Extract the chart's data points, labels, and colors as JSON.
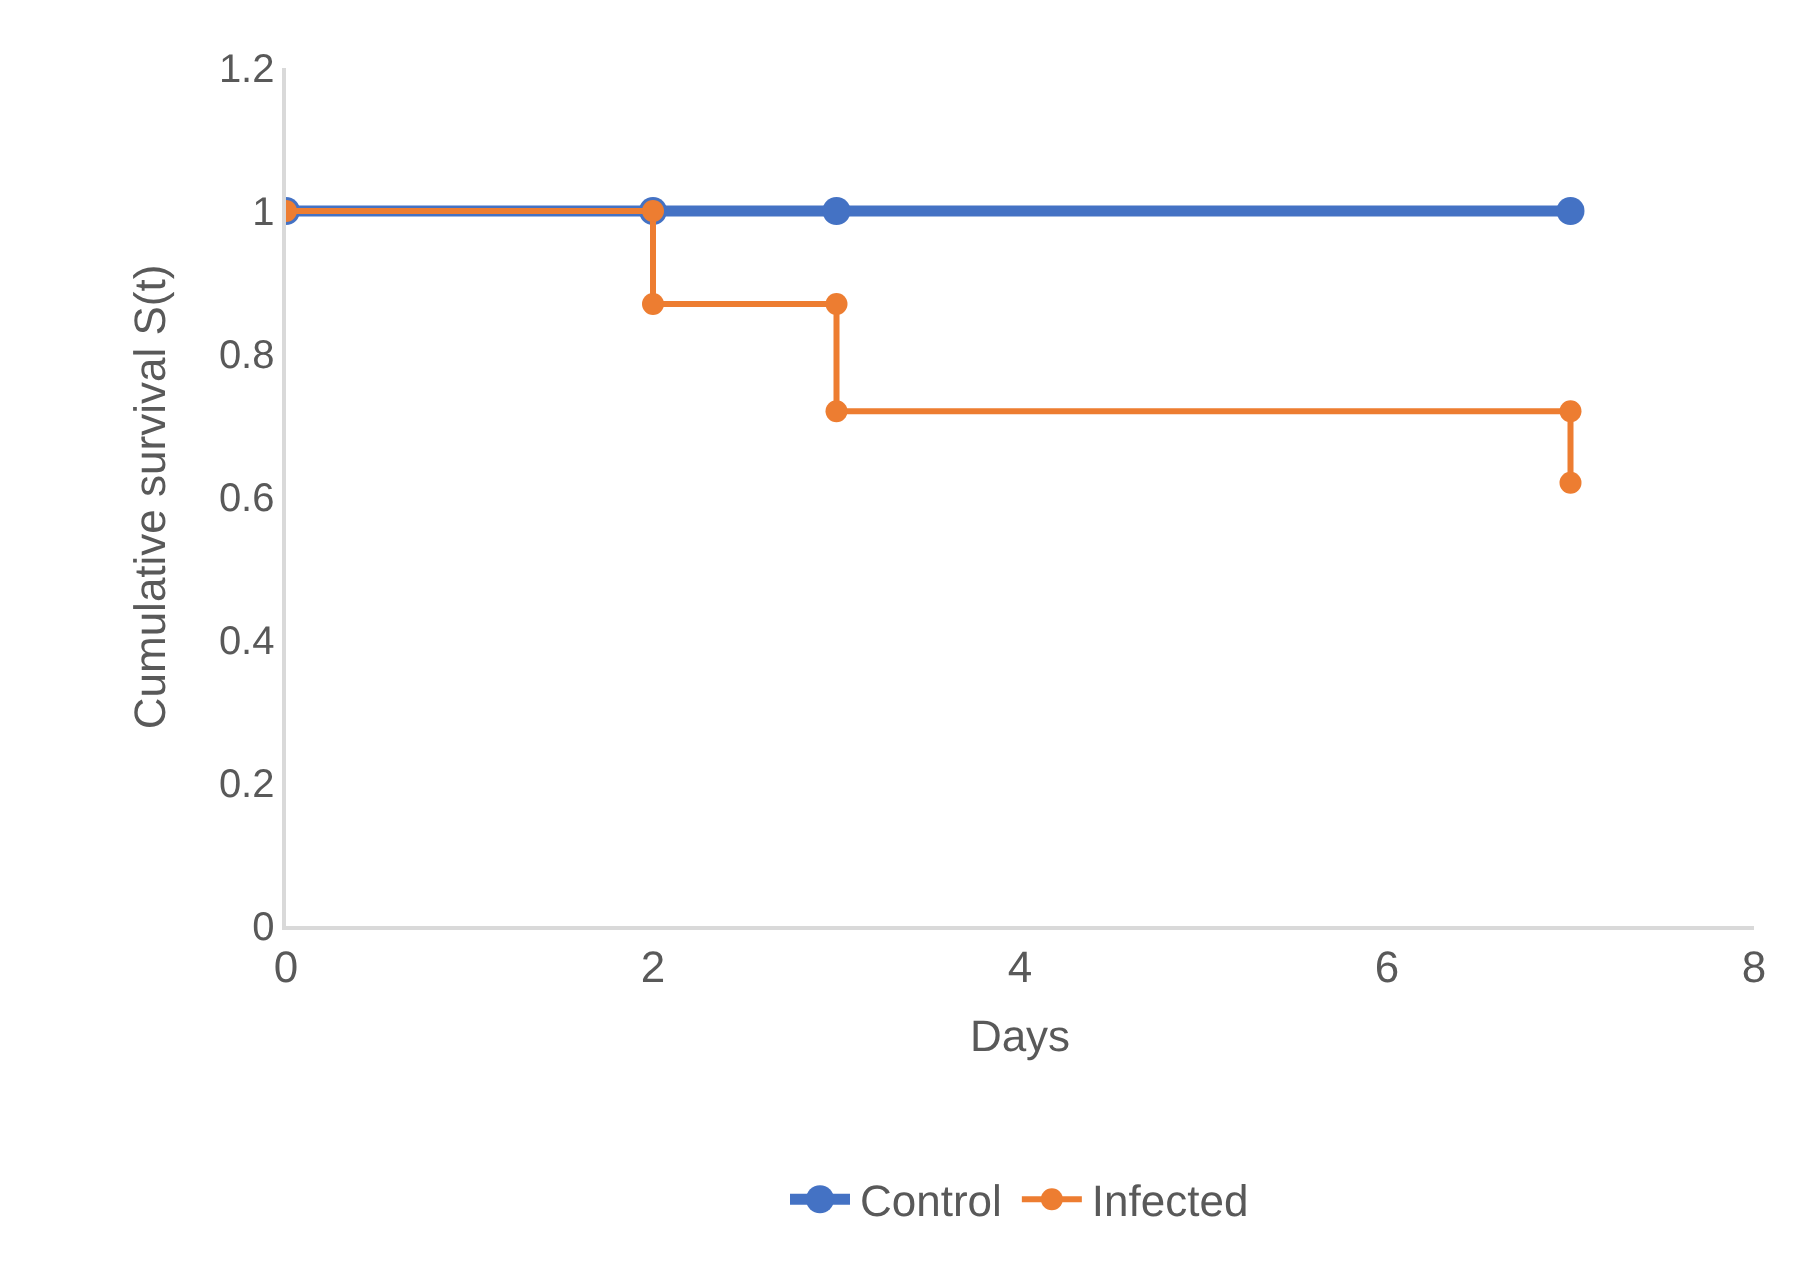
{
  "chart_data": {
    "type": "line",
    "xlabel": "Days",
    "ylabel": "Cumulative survival S(t)",
    "series": [
      {
        "name": "Control",
        "color": "#4472c4",
        "x": [
          0,
          2,
          3,
          7
        ],
        "values": [
          1,
          1,
          1,
          1
        ]
      },
      {
        "name": "Infected",
        "color": "#ed7d31",
        "x": [
          0,
          2,
          2,
          3,
          3,
          7,
          7
        ],
        "values": [
          1,
          1,
          0.87,
          0.87,
          0.72,
          0.72,
          0.62
        ]
      }
    ],
    "xlim": [
      0,
      8
    ],
    "xticks": [
      0,
      2,
      4,
      6,
      8
    ],
    "ylim": [
      0,
      1.2
    ],
    "yticks": [
      {
        "value": 0,
        "label": "0"
      },
      {
        "value": 0.2,
        "label": "0.2"
      },
      {
        "value": 0.4,
        "label": "0.4"
      },
      {
        "value": 0.6,
        "label": "0.6"
      },
      {
        "value": 0.8,
        "label": "0.8"
      },
      {
        "value": 1,
        "label": "1"
      },
      {
        "value": 1.2,
        "label": "1.2"
      }
    ],
    "grid": false,
    "legend": "bottom",
    "marker": "circle",
    "line_style": "solid"
  }
}
